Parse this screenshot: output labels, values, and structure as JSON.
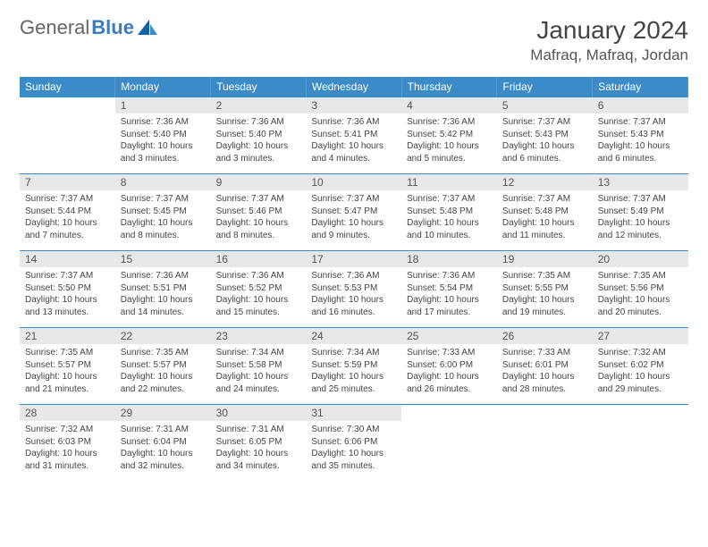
{
  "brand": {
    "part1": "General",
    "part2": "Blue",
    "accent_color": "#3b7bbf"
  },
  "title": "January 2024",
  "location": "Mafraq, Mafraq, Jordan",
  "colors": {
    "header_bg": "#3b8bc9",
    "header_fg": "#ffffff",
    "daynum_bg": "#e8e8e8",
    "border": "#3b8bc9",
    "text": "#444444"
  },
  "day_headers": [
    "Sunday",
    "Monday",
    "Tuesday",
    "Wednesday",
    "Thursday",
    "Friday",
    "Saturday"
  ],
  "weeks": [
    [
      {
        "n": "",
        "t": ""
      },
      {
        "n": "1",
        "t": "Sunrise: 7:36 AM\nSunset: 5:40 PM\nDaylight: 10 hours and 3 minutes."
      },
      {
        "n": "2",
        "t": "Sunrise: 7:36 AM\nSunset: 5:40 PM\nDaylight: 10 hours and 3 minutes."
      },
      {
        "n": "3",
        "t": "Sunrise: 7:36 AM\nSunset: 5:41 PM\nDaylight: 10 hours and 4 minutes."
      },
      {
        "n": "4",
        "t": "Sunrise: 7:36 AM\nSunset: 5:42 PM\nDaylight: 10 hours and 5 minutes."
      },
      {
        "n": "5",
        "t": "Sunrise: 7:37 AM\nSunset: 5:43 PM\nDaylight: 10 hours and 6 minutes."
      },
      {
        "n": "6",
        "t": "Sunrise: 7:37 AM\nSunset: 5:43 PM\nDaylight: 10 hours and 6 minutes."
      }
    ],
    [
      {
        "n": "7",
        "t": "Sunrise: 7:37 AM\nSunset: 5:44 PM\nDaylight: 10 hours and 7 minutes."
      },
      {
        "n": "8",
        "t": "Sunrise: 7:37 AM\nSunset: 5:45 PM\nDaylight: 10 hours and 8 minutes."
      },
      {
        "n": "9",
        "t": "Sunrise: 7:37 AM\nSunset: 5:46 PM\nDaylight: 10 hours and 8 minutes."
      },
      {
        "n": "10",
        "t": "Sunrise: 7:37 AM\nSunset: 5:47 PM\nDaylight: 10 hours and 9 minutes."
      },
      {
        "n": "11",
        "t": "Sunrise: 7:37 AM\nSunset: 5:48 PM\nDaylight: 10 hours and 10 minutes."
      },
      {
        "n": "12",
        "t": "Sunrise: 7:37 AM\nSunset: 5:48 PM\nDaylight: 10 hours and 11 minutes."
      },
      {
        "n": "13",
        "t": "Sunrise: 7:37 AM\nSunset: 5:49 PM\nDaylight: 10 hours and 12 minutes."
      }
    ],
    [
      {
        "n": "14",
        "t": "Sunrise: 7:37 AM\nSunset: 5:50 PM\nDaylight: 10 hours and 13 minutes."
      },
      {
        "n": "15",
        "t": "Sunrise: 7:36 AM\nSunset: 5:51 PM\nDaylight: 10 hours and 14 minutes."
      },
      {
        "n": "16",
        "t": "Sunrise: 7:36 AM\nSunset: 5:52 PM\nDaylight: 10 hours and 15 minutes."
      },
      {
        "n": "17",
        "t": "Sunrise: 7:36 AM\nSunset: 5:53 PM\nDaylight: 10 hours and 16 minutes."
      },
      {
        "n": "18",
        "t": "Sunrise: 7:36 AM\nSunset: 5:54 PM\nDaylight: 10 hours and 17 minutes."
      },
      {
        "n": "19",
        "t": "Sunrise: 7:35 AM\nSunset: 5:55 PM\nDaylight: 10 hours and 19 minutes."
      },
      {
        "n": "20",
        "t": "Sunrise: 7:35 AM\nSunset: 5:56 PM\nDaylight: 10 hours and 20 minutes."
      }
    ],
    [
      {
        "n": "21",
        "t": "Sunrise: 7:35 AM\nSunset: 5:57 PM\nDaylight: 10 hours and 21 minutes."
      },
      {
        "n": "22",
        "t": "Sunrise: 7:35 AM\nSunset: 5:57 PM\nDaylight: 10 hours and 22 minutes."
      },
      {
        "n": "23",
        "t": "Sunrise: 7:34 AM\nSunset: 5:58 PM\nDaylight: 10 hours and 24 minutes."
      },
      {
        "n": "24",
        "t": "Sunrise: 7:34 AM\nSunset: 5:59 PM\nDaylight: 10 hours and 25 minutes."
      },
      {
        "n": "25",
        "t": "Sunrise: 7:33 AM\nSunset: 6:00 PM\nDaylight: 10 hours and 26 minutes."
      },
      {
        "n": "26",
        "t": "Sunrise: 7:33 AM\nSunset: 6:01 PM\nDaylight: 10 hours and 28 minutes."
      },
      {
        "n": "27",
        "t": "Sunrise: 7:32 AM\nSunset: 6:02 PM\nDaylight: 10 hours and 29 minutes."
      }
    ],
    [
      {
        "n": "28",
        "t": "Sunrise: 7:32 AM\nSunset: 6:03 PM\nDaylight: 10 hours and 31 minutes."
      },
      {
        "n": "29",
        "t": "Sunrise: 7:31 AM\nSunset: 6:04 PM\nDaylight: 10 hours and 32 minutes."
      },
      {
        "n": "30",
        "t": "Sunrise: 7:31 AM\nSunset: 6:05 PM\nDaylight: 10 hours and 34 minutes."
      },
      {
        "n": "31",
        "t": "Sunrise: 7:30 AM\nSunset: 6:06 PM\nDaylight: 10 hours and 35 minutes."
      },
      {
        "n": "",
        "t": ""
      },
      {
        "n": "",
        "t": ""
      },
      {
        "n": "",
        "t": ""
      }
    ]
  ]
}
